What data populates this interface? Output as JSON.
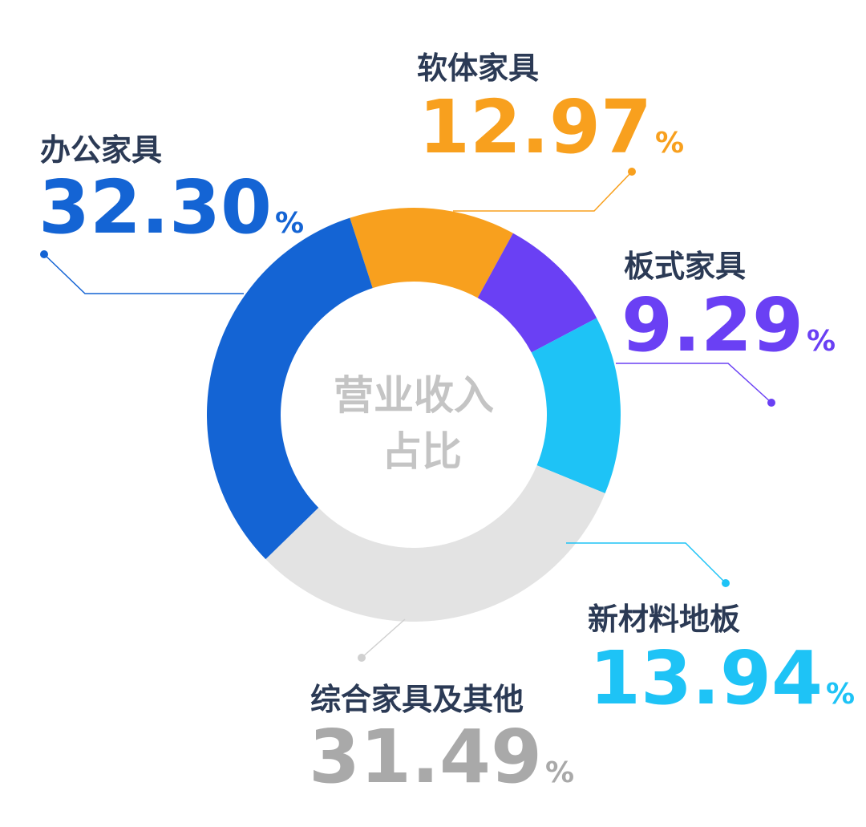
{
  "chart_data": {
    "type": "pie",
    "center_label": [
      "营业收入",
      "占比"
    ],
    "unit": "%",
    "slices": [
      {
        "label": "软体家具",
        "value": 12.97,
        "display": "12.97",
        "color": "#f8a01e"
      },
      {
        "label": "板式家具",
        "value": 9.29,
        "display": "9.29",
        "color": "#6a40f4"
      },
      {
        "label": "新材料地板",
        "value": 13.94,
        "display": "13.94",
        "color": "#1ec3f6"
      },
      {
        "label": "综合家具及其他",
        "value": 31.49,
        "display": "31.49",
        "color": "#e3e3e3"
      },
      {
        "label": "办公家具",
        "value": 32.3,
        "display": "32.30",
        "color": "#1464d4"
      }
    ],
    "value_colors": [
      "#f8a01e",
      "#6a40f4",
      "#1ec3f6",
      "#a9a9a9",
      "#1464d4"
    ],
    "legend": "none"
  }
}
